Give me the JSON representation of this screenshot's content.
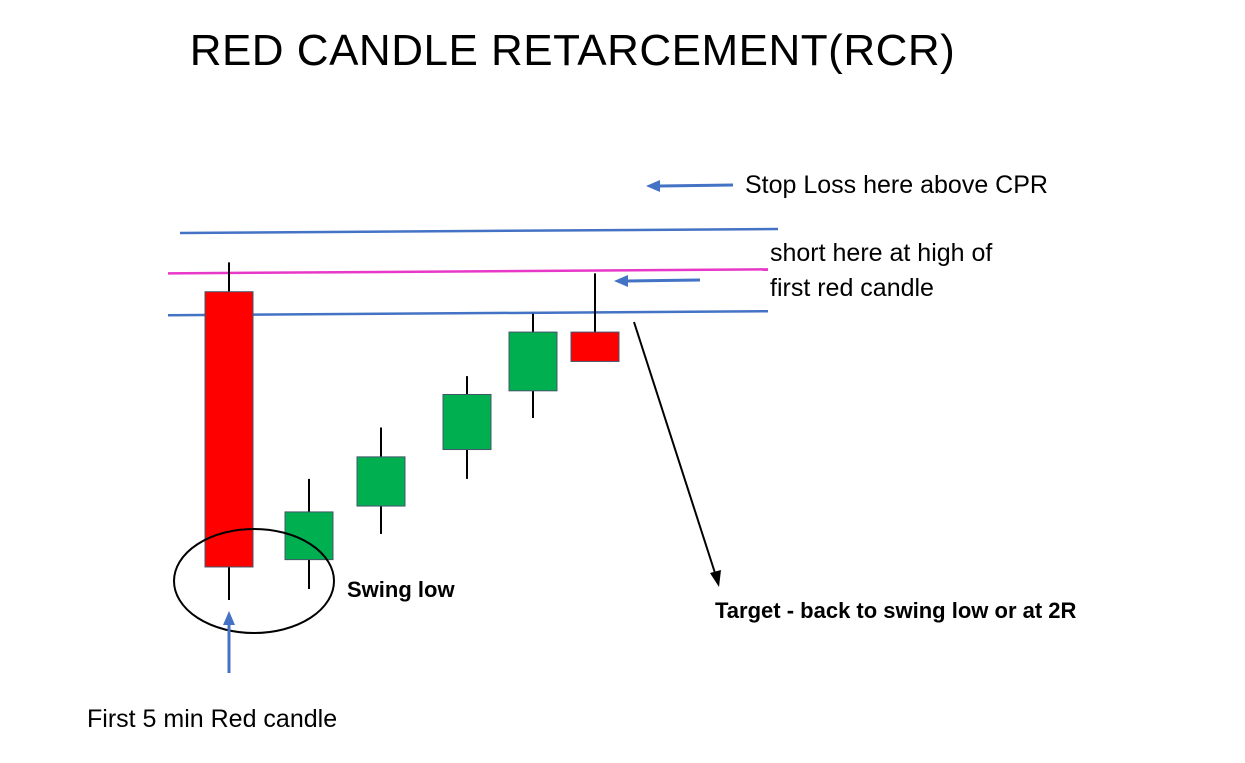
{
  "title": "RED CANDLE RETARCEMENT(RCR)",
  "annotations": {
    "stop_loss": "Stop Loss here above CPR",
    "short_entry_line1": "short here at high of",
    "short_entry_line2": "first red candle",
    "swing_low": "Swing low",
    "target": "Target - back to swing low or at 2R",
    "first_candle": "First 5 min Red candle"
  },
  "colors": {
    "bearish": "#ff0000",
    "bullish": "#00b050",
    "cpr_line": "#4472c4",
    "entry_line": "#e838c8",
    "arrow_blue": "#4472c4",
    "arrow_black": "#000000",
    "wick": "#000000"
  },
  "candles": [
    {
      "type": "bearish",
      "open": 42.0,
      "high": 46.0,
      "low": 0.0,
      "close": 4.5
    },
    {
      "type": "bullish",
      "open": 5.5,
      "high": 16.5,
      "low": 1.5,
      "close": 12.0
    },
    {
      "type": "bullish",
      "open": 12.8,
      "high": 23.5,
      "low": 9.0,
      "close": 19.5
    },
    {
      "type": "bullish",
      "open": 20.5,
      "high": 30.5,
      "low": 16.5,
      "close": 28.0
    },
    {
      "type": "bullish",
      "open": 28.5,
      "high": 39.0,
      "low": 24.8,
      "close": 36.5
    },
    {
      "type": "bearish",
      "open": 36.5,
      "high": 44.5,
      "low": 32.5,
      "close": 32.5
    }
  ],
  "levels": {
    "upper_cpr": 50.0,
    "entry_high": 44.5,
    "lower_cpr": 38.8
  }
}
